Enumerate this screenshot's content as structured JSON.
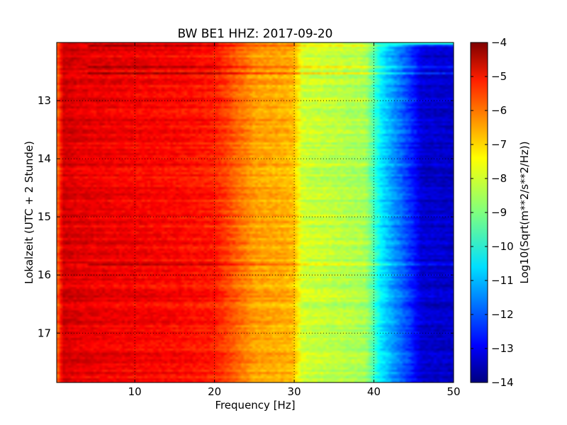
{
  "chart_data": {
    "type": "heatmap",
    "title": "BW BE1 HHZ: 2017-09-20",
    "xlabel": "Frequency [Hz]",
    "ylabel": "Lokalzeit (UTC + 2 Stunde)",
    "xlim": [
      0.2,
      50
    ],
    "ylim": [
      17.85,
      12.0
    ],
    "y_inverted": true,
    "x_ticks": [
      10,
      20,
      30,
      40,
      50
    ],
    "y_ticks": [
      13,
      14,
      15,
      16,
      17
    ],
    "grid": true,
    "colormap": "jet",
    "colorbar": {
      "label": "Log10(Sqrt(m**2/s**2/Hz))",
      "range": [
        -14,
        -4
      ],
      "ticks": [
        -4,
        -5,
        -6,
        -7,
        -8,
        -9,
        -10,
        -11,
        -12,
        -13,
        -14
      ]
    },
    "spectrum_profile_hz_vs_log10": {
      "x": [
        0.2,
        1,
        3,
        10,
        15,
        20,
        25,
        29,
        30,
        31,
        35,
        39,
        41,
        43,
        45,
        46,
        50
      ],
      "values": [
        -6.5,
        -4.8,
        -5.0,
        -5.2,
        -5.3,
        -5.5,
        -6.8,
        -7.0,
        -7.1,
        -8.2,
        -8.4,
        -8.6,
        -10.5,
        -11.5,
        -12.5,
        -13.2,
        -13.3
      ]
    },
    "anomalous_rows_hours": [
      12.05,
      12.42,
      12.5,
      15.82
    ]
  }
}
